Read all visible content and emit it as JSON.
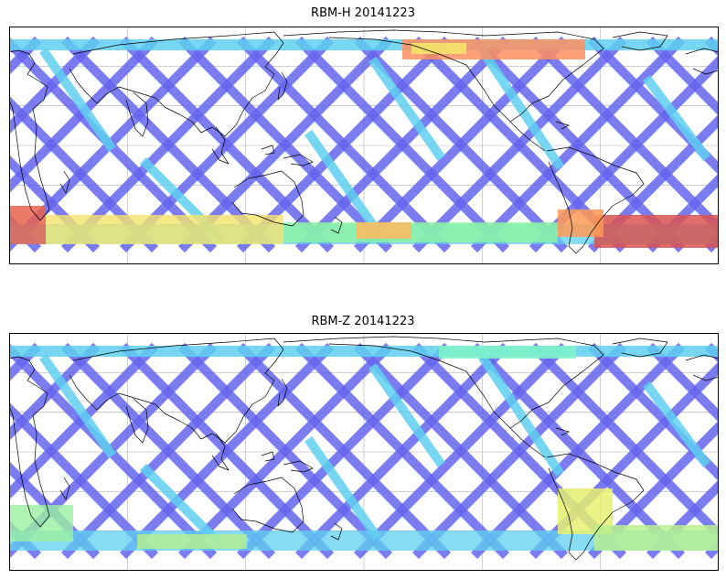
{
  "panels": [
    {
      "title": "RBM-H 20141223",
      "background_track_color": "#6565ee",
      "hotspots": [
        {
          "region": "north-pacific-belt",
          "color": "#ff8c55"
        },
        {
          "region": "south-atlantic-anomaly",
          "color": "#d9534f"
        },
        {
          "region": "south-indian-ocean",
          "color": "#ff7c4a"
        },
        {
          "region": "southern-belt",
          "color": "#f5e36a"
        }
      ]
    },
    {
      "title": "RBM-Z 20141223",
      "background_track_color": "#6565ee",
      "hotspots": [
        {
          "region": "north-pacific-belt",
          "color": "#7ff5c8"
        },
        {
          "region": "south-atlantic-anomaly",
          "color": "#e6f070"
        },
        {
          "region": "southern-belt",
          "color": "#9af0a0"
        }
      ]
    }
  ],
  "colors": {
    "low": "#6565ee",
    "mid": "#5fd0f0",
    "midhigh": "#8ef5a0",
    "high": "#f5e36a",
    "max": "#d9534f"
  }
}
